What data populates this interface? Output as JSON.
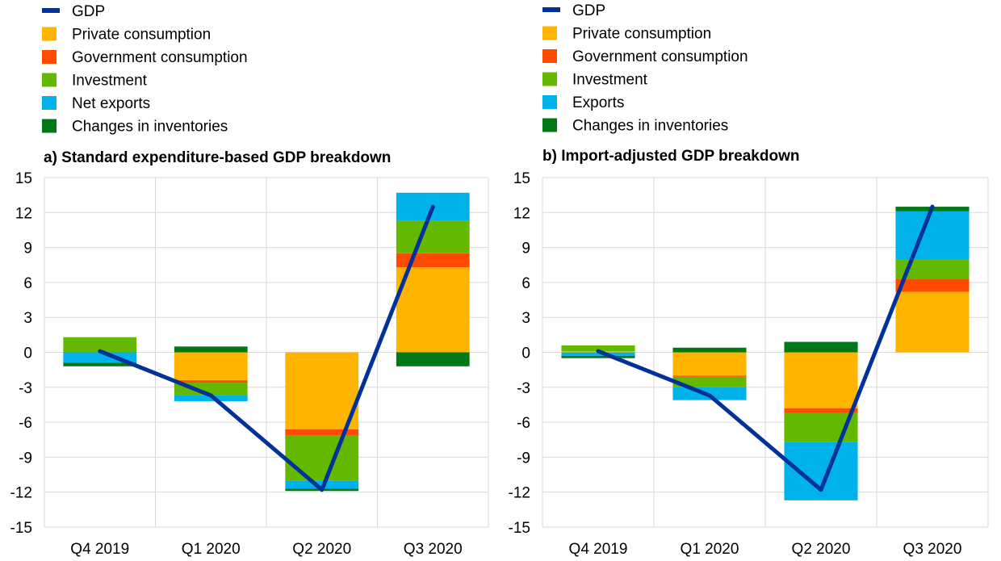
{
  "colors": {
    "gdp": "#003299",
    "private_consumption": "#FFB400",
    "government_consumption": "#FF4B00",
    "investment": "#65B800",
    "exports": "#00B1EA",
    "inventories": "#007816",
    "grid": "#d9d9d9"
  },
  "chart_data": [
    {
      "type": "bar",
      "stacked": true,
      "title": "a) Standard expenditure-based GDP breakdown",
      "categories": [
        "Q4 2019",
        "Q1 2020",
        "Q2 2020",
        "Q3 2020"
      ],
      "ylim": [
        -15,
        15
      ],
      "yticks": [
        15,
        12,
        9,
        6,
        3,
        0,
        -3,
        -6,
        -9,
        -12,
        -15
      ],
      "grid": true,
      "legend_position": "top-left",
      "series": [
        {
          "name": "Private consumption",
          "color_key": "private_consumption",
          "values": [
            0.0,
            -2.4,
            -6.6,
            7.3
          ]
        },
        {
          "name": "Government consumption",
          "color_key": "government_consumption",
          "values": [
            0.0,
            -0.2,
            -0.5,
            1.2
          ]
        },
        {
          "name": "Investment",
          "color_key": "investment",
          "values": [
            1.3,
            -1.1,
            -3.9,
            2.8
          ]
        },
        {
          "name": "Net exports",
          "color_key": "exports",
          "values": [
            -0.9,
            -0.5,
            -0.7,
            2.4
          ]
        },
        {
          "name": "Changes in inventories",
          "color_key": "inventories",
          "values": [
            -0.3,
            0.5,
            -0.2,
            -1.2
          ]
        }
      ],
      "line": {
        "name": "GDP",
        "color_key": "gdp",
        "values": [
          0.1,
          -3.7,
          -11.8,
          12.5
        ]
      }
    },
    {
      "type": "bar",
      "stacked": true,
      "title": "b) Import-adjusted GDP breakdown",
      "categories": [
        "Q4 2019",
        "Q1 2020",
        "Q2 2020",
        "Q3 2020"
      ],
      "ylim": [
        -15,
        15
      ],
      "yticks": [
        15,
        12,
        9,
        6,
        3,
        0,
        -3,
        -6,
        -9,
        -12,
        -15
      ],
      "grid": true,
      "legend_position": "top-left",
      "series": [
        {
          "name": "Private consumption",
          "color_key": "private_consumption",
          "values": [
            0.1,
            -2.0,
            -4.8,
            5.2
          ]
        },
        {
          "name": "Government consumption",
          "color_key": "government_consumption",
          "values": [
            0.0,
            -0.1,
            -0.4,
            1.1
          ]
        },
        {
          "name": "Investment",
          "color_key": "investment",
          "values": [
            0.5,
            -0.9,
            -2.5,
            1.7
          ]
        },
        {
          "name": "Exports",
          "color_key": "exports",
          "values": [
            -0.3,
            -1.1,
            -5.0,
            4.1
          ]
        },
        {
          "name": "Changes in inventories",
          "color_key": "inventories",
          "values": [
            -0.2,
            0.4,
            0.9,
            0.4
          ]
        }
      ],
      "line": {
        "name": "GDP",
        "color_key": "gdp",
        "values": [
          0.1,
          -3.7,
          -11.8,
          12.5
        ]
      }
    }
  ]
}
